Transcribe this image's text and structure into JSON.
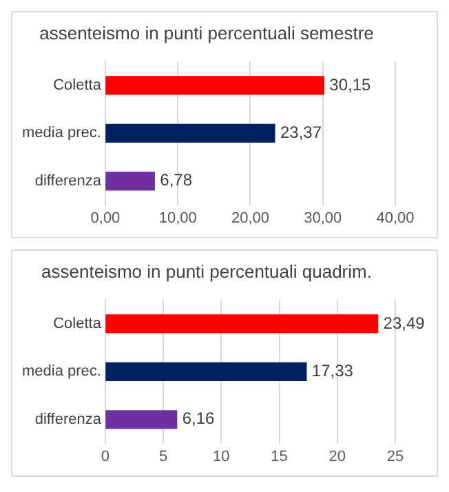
{
  "chart_data": [
    {
      "type": "bar",
      "orientation": "horizontal",
      "title": "assenteismo in punti percentuali semestre",
      "categories": [
        "Coletta",
        "media prec.",
        "differenza"
      ],
      "values": [
        30.15,
        23.37,
        6.78
      ],
      "colors": [
        "#ff0000",
        "#002060",
        "#7030a0"
      ],
      "value_labels": [
        "30,15",
        "23,37",
        "6,78"
      ],
      "xlim": [
        0,
        40
      ],
      "xticks": [
        {
          "value": 0,
          "label": "0,00"
        },
        {
          "value": 10,
          "label": "10,00"
        },
        {
          "value": 20,
          "label": "20,00"
        },
        {
          "value": 30,
          "label": "30,00"
        },
        {
          "value": 40,
          "label": "40,00"
        }
      ],
      "grid": "x"
    },
    {
      "type": "bar",
      "orientation": "horizontal",
      "title": "assenteismo in punti percentuali quadrim.",
      "categories": [
        "Coletta",
        "media prec.",
        "differenza"
      ],
      "values": [
        23.49,
        17.33,
        6.16
      ],
      "colors": [
        "#ff0000",
        "#002060",
        "#7030a0"
      ],
      "value_labels": [
        "23,49",
        "17,33",
        "6,16"
      ],
      "xlim": [
        0,
        25
      ],
      "xticks": [
        0,
        5,
        10,
        15,
        20,
        25
      ],
      "grid": "x"
    }
  ]
}
